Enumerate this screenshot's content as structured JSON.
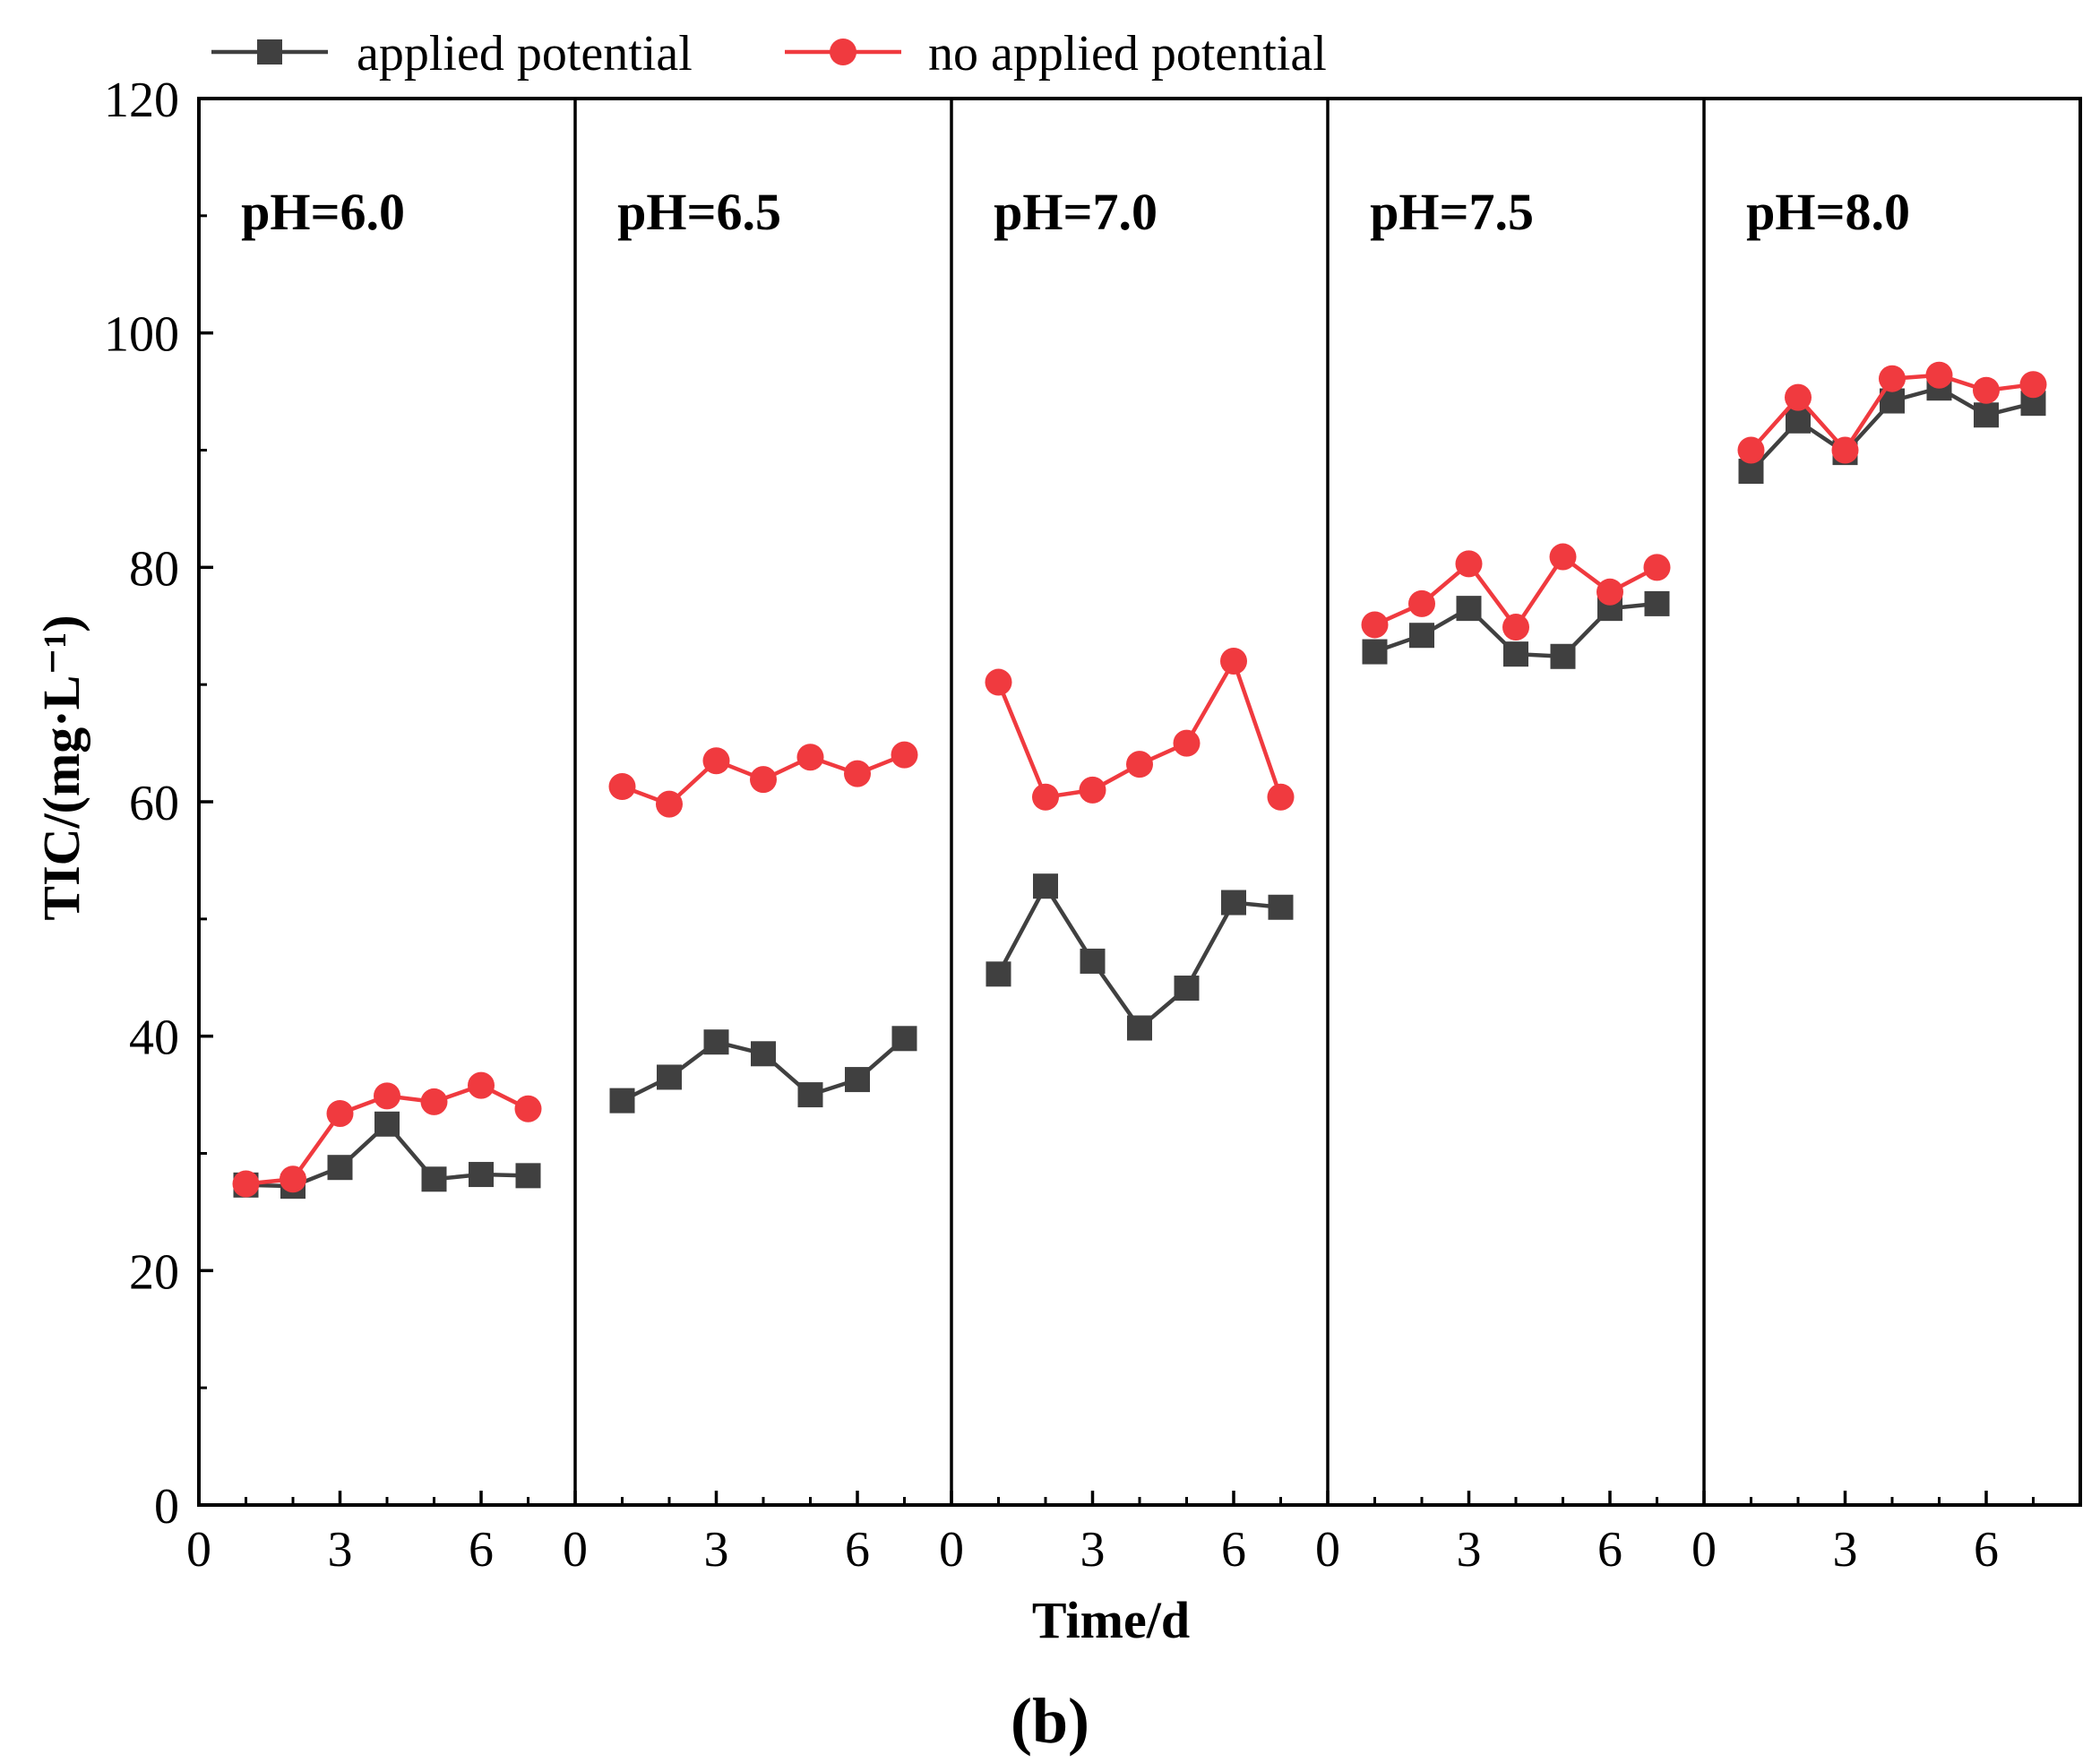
{
  "chart_data": {
    "type": "line",
    "panel_label": "(b)",
    "xlabel": "Time/d",
    "ylabel": "TIC/(mg·L⁻¹)",
    "ylim": [
      0,
      120
    ],
    "y_ticks": [
      0,
      20,
      40,
      60,
      80,
      100,
      120
    ],
    "y_tick_labels": [
      "0",
      "20",
      "40",
      "60",
      "80",
      "100",
      "120"
    ],
    "xlim": [
      0,
      8
    ],
    "x_ticks": [
      0,
      3,
      6
    ],
    "x_tick_labels": [
      "0",
      "3",
      "6"
    ],
    "x_minor_ticks": [
      1,
      2,
      4,
      5,
      7
    ],
    "legend": {
      "placement": "top-left",
      "entries": [
        {
          "name": "applied potential",
          "color": "#404040",
          "marker": "square"
        },
        {
          "name": "no applied potential",
          "color": "#f03a3f",
          "marker": "circle"
        }
      ]
    },
    "x": [
      1,
      2,
      3,
      4,
      5,
      6,
      7
    ],
    "panels": [
      {
        "title": "pH=6.0",
        "series": [
          {
            "name": "applied potential",
            "values": [
              27.3,
              27.2,
              28.8,
              32.5,
              27.8,
              28.2,
              28.1
            ]
          },
          {
            "name": "no applied potential",
            "values": [
              27.4,
              27.8,
              33.4,
              34.9,
              34.4,
              35.8,
              33.8
            ]
          }
        ]
      },
      {
        "title": "pH=6.5",
        "series": [
          {
            "name": "applied potential",
            "values": [
              34.5,
              36.5,
              39.5,
              38.5,
              35.0,
              36.3,
              39.8
            ]
          },
          {
            "name": "no applied potential",
            "values": [
              61.3,
              59.8,
              63.5,
              61.9,
              63.8,
              62.4,
              64.0
            ]
          }
        ]
      },
      {
        "title": "pH=7.0",
        "series": [
          {
            "name": "applied potential",
            "values": [
              45.3,
              52.8,
              46.4,
              40.7,
              44.1,
              51.4,
              51.0
            ]
          },
          {
            "name": "no applied potential",
            "values": [
              70.2,
              60.4,
              61.0,
              63.2,
              65.0,
              72.0,
              60.4
            ]
          }
        ]
      },
      {
        "title": "pH=7.5",
        "series": [
          {
            "name": "applied potential",
            "values": [
              72.8,
              74.2,
              76.5,
              72.6,
              72.4,
              76.5,
              76.9
            ]
          },
          {
            "name": "no applied potential",
            "values": [
              75.1,
              76.9,
              80.3,
              74.9,
              80.9,
              77.9,
              80.0
            ]
          }
        ]
      },
      {
        "title": "pH=8.0",
        "series": [
          {
            "name": "applied potential",
            "values": [
              88.2,
              92.5,
              89.8,
              94.2,
              95.3,
              93.0,
              94.0
            ]
          },
          {
            "name": "no applied potential",
            "values": [
              90.0,
              94.5,
              90.0,
              96.1,
              96.4,
              95.1,
              95.6
            ]
          }
        ]
      }
    ]
  }
}
